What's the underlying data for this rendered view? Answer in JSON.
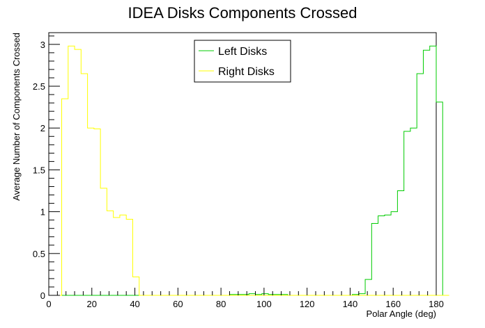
{
  "chart_data": {
    "type": "line",
    "title": "IDEA Disks Components Crossed",
    "xlabel": "Polar Angle (deg)",
    "ylabel": "Average Number of Components Crossed",
    "xlim": [
      0,
      180
    ],
    "ylim": [
      0,
      3.14
    ],
    "bin_width": 3,
    "x_ticks": [
      0,
      20,
      40,
      60,
      80,
      100,
      120,
      140,
      160,
      180
    ],
    "y_ticks": [
      0,
      0.5,
      1,
      1.5,
      2,
      2.5,
      3
    ],
    "x_tick_labels": [
      "0",
      "20",
      "40",
      "60",
      "80",
      "100",
      "120",
      "140",
      "160",
      "180"
    ],
    "y_tick_labels": [
      "0",
      "0.5",
      "1",
      "1.5",
      "2",
      "2.5",
      "3"
    ],
    "grid": false,
    "legend_position": "top-center",
    "series": [
      {
        "name": "Left Disks",
        "color": "#00cc00",
        "values": [
          0,
          0,
          0,
          0,
          0,
          0,
          0,
          0,
          0,
          0,
          0,
          0,
          0,
          0,
          0,
          0,
          0,
          0,
          0,
          0,
          0,
          0,
          0,
          0,
          0,
          0,
          0,
          0,
          0.01,
          0.01,
          0.01,
          0.02,
          0.01,
          0.02,
          0.01,
          0.01,
          0.01,
          0,
          0,
          0,
          0,
          0,
          0,
          0,
          0,
          0,
          0,
          0.01,
          0.02,
          0.19,
          0.86,
          0.95,
          0.96,
          1.0,
          1.25,
          1.96,
          2.0,
          2.65,
          2.93,
          2.98,
          2.31,
          0
        ]
      },
      {
        "name": "Right Disks",
        "color": "#ffff00",
        "values": [
          0,
          0,
          2.35,
          2.98,
          2.94,
          2.65,
          2.0,
          1.99,
          1.28,
          1.01,
          0.93,
          0.96,
          0.91,
          0.22,
          0,
          0,
          0,
          0,
          0,
          0,
          0,
          0,
          0,
          0,
          0,
          0,
          0,
          0,
          0,
          0,
          0,
          0,
          0,
          0,
          0,
          0,
          0,
          0,
          0,
          0,
          0,
          0,
          0,
          0,
          0,
          0,
          0,
          0,
          0,
          0,
          0,
          0,
          0,
          0,
          0,
          0,
          0,
          0,
          0,
          0,
          0,
          0
        ]
      }
    ]
  }
}
